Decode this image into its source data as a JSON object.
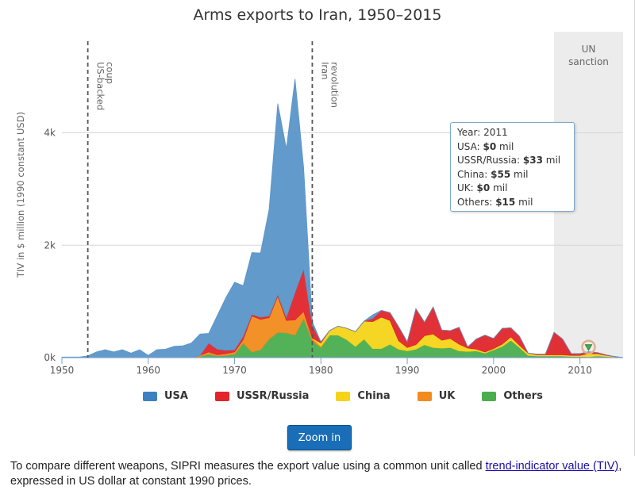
{
  "chart_data": {
    "type": "area",
    "stacked": true,
    "title": "Arms exports to Iran, 1950–2015",
    "ylabel": "TIV in $ million (1990 constant USD)",
    "xlabel": "",
    "xlim": [
      1950,
      2015
    ],
    "ylim": [
      0,
      5800
    ],
    "x_ticks": [
      "1950",
      "1960",
      "1970",
      "1980",
      "1990",
      "2000",
      "2010"
    ],
    "y_ticks": [
      {
        "value": 0,
        "label": "0k"
      },
      {
        "value": 2000,
        "label": "2k"
      },
      {
        "value": 4000,
        "label": "4k"
      }
    ],
    "grid": true,
    "legend_position": "bottom",
    "x": [
      1950,
      1951,
      1952,
      1953,
      1954,
      1955,
      1956,
      1957,
      1958,
      1959,
      1960,
      1961,
      1962,
      1963,
      1964,
      1965,
      1966,
      1967,
      1968,
      1969,
      1970,
      1971,
      1972,
      1973,
      1974,
      1975,
      1976,
      1977,
      1978,
      1979,
      1980,
      1981,
      1982,
      1983,
      1984,
      1985,
      1986,
      1987,
      1988,
      1989,
      1990,
      1991,
      1992,
      1993,
      1994,
      1995,
      1996,
      1997,
      1998,
      1999,
      2000,
      2001,
      2002,
      2003,
      2004,
      2005,
      2006,
      2007,
      2008,
      2009,
      2010,
      2011,
      2012,
      2013,
      2014,
      2015
    ],
    "series": [
      {
        "name": "Others",
        "color": "#4aae4e",
        "values": [
          0,
          0,
          0,
          0,
          0,
          0,
          0,
          0,
          0,
          0,
          0,
          0,
          0,
          0,
          0,
          0,
          20,
          60,
          30,
          40,
          60,
          260,
          100,
          140,
          330,
          450,
          440,
          400,
          700,
          300,
          180,
          400,
          400,
          320,
          200,
          330,
          160,
          160,
          240,
          150,
          120,
          150,
          230,
          180,
          170,
          180,
          120,
          110,
          120,
          80,
          140,
          200,
          310,
          180,
          40,
          30,
          30,
          30,
          30,
          20,
          20,
          15,
          30,
          20,
          10,
          0
        ]
      },
      {
        "name": "UK",
        "color": "#f28b1d",
        "values": [
          0,
          0,
          0,
          0,
          0,
          0,
          0,
          0,
          0,
          0,
          0,
          0,
          0,
          0,
          0,
          0,
          20,
          40,
          20,
          30,
          40,
          60,
          640,
          540,
          380,
          640,
          220,
          270,
          120,
          50,
          20,
          0,
          0,
          0,
          0,
          0,
          0,
          0,
          0,
          0,
          0,
          0,
          0,
          0,
          0,
          0,
          0,
          0,
          0,
          0,
          0,
          0,
          0,
          0,
          0,
          0,
          0,
          0,
          0,
          0,
          0,
          0,
          0,
          0,
          0,
          0
        ]
      },
      {
        "name": "China",
        "color": "#f5d418",
        "values": [
          0,
          0,
          0,
          0,
          0,
          0,
          0,
          0,
          0,
          0,
          0,
          0,
          0,
          0,
          0,
          0,
          0,
          0,
          0,
          0,
          0,
          0,
          0,
          0,
          0,
          0,
          0,
          0,
          0,
          0,
          60,
          80,
          160,
          200,
          260,
          320,
          480,
          560,
          420,
          150,
          60,
          80,
          160,
          240,
          140,
          160,
          120,
          60,
          30,
          20,
          20,
          40,
          60,
          40,
          40,
          20,
          20,
          20,
          20,
          20,
          20,
          55,
          40,
          20,
          10,
          0
        ]
      },
      {
        "name": "USSR/Russia",
        "color": "#e0262b",
        "values": [
          0,
          0,
          0,
          0,
          0,
          0,
          0,
          0,
          0,
          0,
          0,
          0,
          0,
          0,
          0,
          0,
          0,
          160,
          100,
          60,
          40,
          60,
          30,
          40,
          30,
          30,
          60,
          490,
          760,
          230,
          20,
          0,
          0,
          0,
          0,
          0,
          60,
          120,
          140,
          250,
          100,
          640,
          240,
          480,
          180,
          140,
          300,
          20,
          180,
          300,
          180,
          280,
          160,
          160,
          0,
          10,
          10,
          400,
          280,
          30,
          30,
          33,
          20,
          10,
          0,
          0
        ]
      },
      {
        "name": "USA",
        "color": "#5b95c9",
        "values": [
          10,
          10,
          10,
          30,
          100,
          140,
          100,
          140,
          80,
          140,
          40,
          140,
          150,
          200,
          210,
          260,
          380,
          170,
          600,
          940,
          1200,
          900,
          1100,
          1140,
          1900,
          3400,
          3000,
          3800,
          1800,
          60,
          0,
          0,
          0,
          0,
          0,
          0,
          60,
          0,
          0,
          0,
          0,
          0,
          0,
          0,
          0,
          0,
          0,
          0,
          0,
          0,
          0,
          0,
          0,
          0,
          0,
          0,
          0,
          0,
          0,
          0,
          0,
          0,
          0,
          0,
          0,
          0
        ]
      }
    ],
    "plot_lines": [
      {
        "x": 1953,
        "label": "US-backed coup"
      },
      {
        "x": 1979,
        "label": "Iran revolution"
      }
    ],
    "plot_bands": [
      {
        "from": 2007,
        "to": 2015,
        "label": "UN sanction"
      }
    ],
    "tooltip": {
      "year_label": "Year:",
      "year": "2011",
      "rows": [
        {
          "label": "USA:",
          "value": "$0",
          "unit": "mil"
        },
        {
          "label": "USSR/Russia:",
          "value": "$33",
          "unit": "mil"
        },
        {
          "label": "China:",
          "value": "$55",
          "unit": "mil"
        },
        {
          "label": "UK:",
          "value": "$0",
          "unit": "mil"
        },
        {
          "label": "Others:",
          "value": "$15",
          "unit": "mil"
        }
      ]
    }
  },
  "legend": [
    {
      "label": "USA",
      "color": "#3d7fc0"
    },
    {
      "label": "USSR/Russia",
      "color": "#e0262b"
    },
    {
      "label": "China",
      "color": "#f5d418"
    },
    {
      "label": "UK",
      "color": "#f28b1d"
    },
    {
      "label": "Others",
      "color": "#4aae4e"
    }
  ],
  "zoom_button": "Zoom in",
  "footer": {
    "text_before": "To compare different weapons, SIPRI measures the export value using a common unit called ",
    "link_text": "trend-indicator value (TIV)",
    "text_after": ", expressed in US dollar at constant 1990 prices."
  }
}
